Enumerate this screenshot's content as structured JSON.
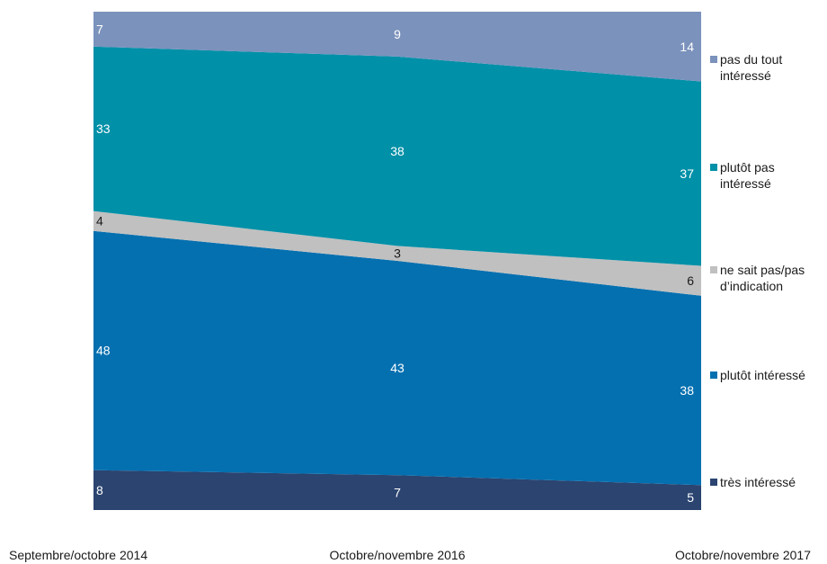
{
  "chart_data": {
    "type": "area",
    "stacked": true,
    "percent": true,
    "categories": [
      "Septembre/octobre 2014",
      "Octobre/novembre 2016",
      "Octobre/novembre 2017"
    ],
    "series": [
      {
        "name": "très intéressé",
        "values": [
          8,
          7,
          5
        ],
        "color": "#2b4470",
        "label_color": "#ffffff"
      },
      {
        "name": "plutôt intéressé",
        "values": [
          48,
          43,
          38
        ],
        "color": "#0570b0",
        "label_color": "#ffffff"
      },
      {
        "name": "ne sait pas/pas d’indication",
        "values": [
          4,
          3,
          6
        ],
        "color": "#c0c0c0",
        "label_color": "#1a1a1a"
      },
      {
        "name": "plutôt pas intéressé",
        "values": [
          33,
          38,
          37
        ],
        "color": "#0090a8",
        "label_color": "#ffffff"
      },
      {
        "name": "pas du tout intéressé",
        "values": [
          7,
          9,
          14
        ],
        "color": "#7b92bc",
        "label_color": "#ffffff"
      }
    ],
    "ylim": [
      0,
      100
    ],
    "grid": false,
    "legend": "right"
  }
}
